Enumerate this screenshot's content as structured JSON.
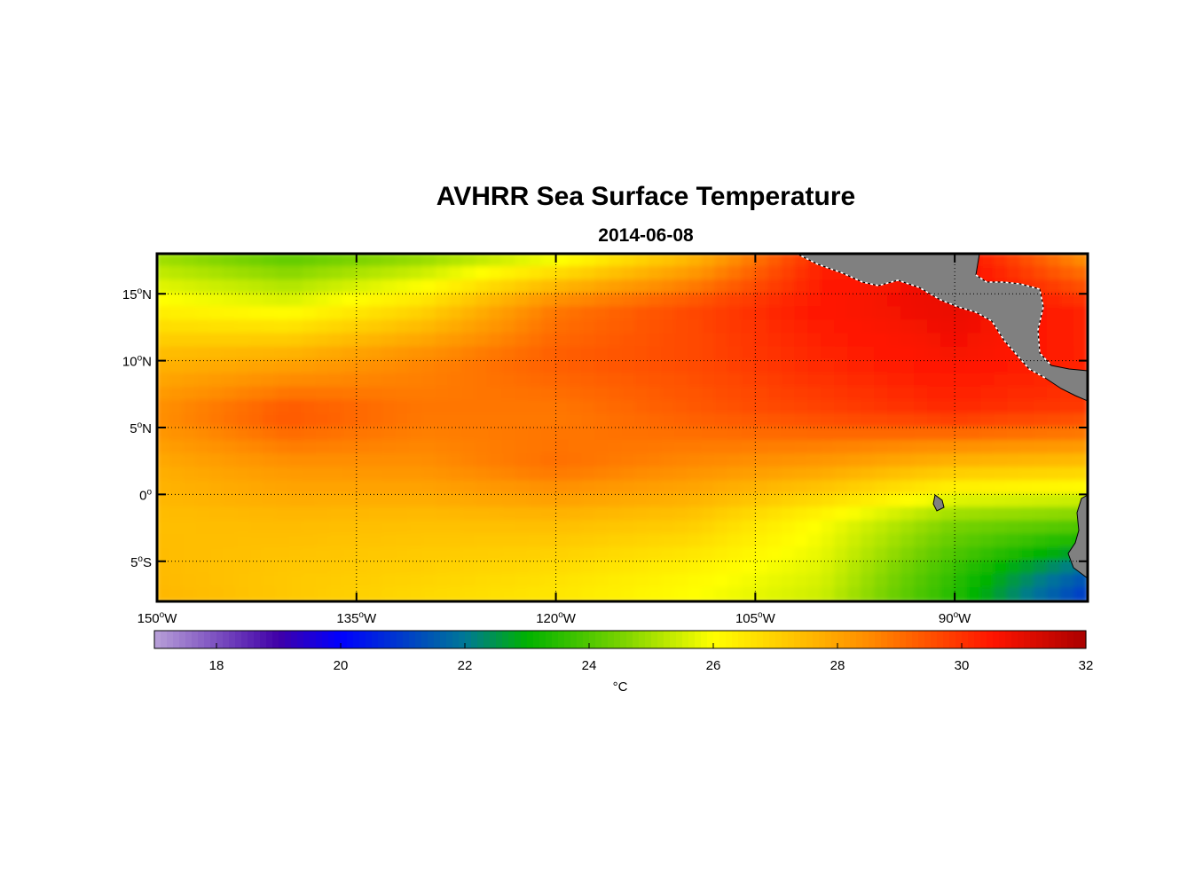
{
  "title": "AVHRR Sea Surface Temperature",
  "subtitle": "2014-06-08",
  "colorbar": {
    "unit": "°C",
    "min": 17,
    "max": 32,
    "ticks": [
      {
        "value": 18,
        "label": "18"
      },
      {
        "value": 20,
        "label": "20"
      },
      {
        "value": 22,
        "label": "22"
      },
      {
        "value": 24,
        "label": "24"
      },
      {
        "value": 26,
        "label": "26"
      },
      {
        "value": 28,
        "label": "28"
      },
      {
        "value": 30,
        "label": "30"
      },
      {
        "value": 32,
        "label": "32"
      }
    ]
  },
  "chart_data": {
    "type": "heatmap",
    "title": "AVHRR Sea Surface Temperature",
    "subtitle": "2014-06-08",
    "xlabel": "",
    "ylabel": "",
    "xlim": [
      -150,
      -80
    ],
    "ylim": [
      -8,
      18
    ],
    "x_ticks": [
      {
        "value": -150,
        "label": "150",
        "hemi": "W"
      },
      {
        "value": -135,
        "label": "135",
        "hemi": "W"
      },
      {
        "value": -120,
        "label": "120",
        "hemi": "W"
      },
      {
        "value": -105,
        "label": "105",
        "hemi": "W"
      },
      {
        "value": -90,
        "label": "90",
        "hemi": "W"
      }
    ],
    "y_ticks": [
      {
        "value": 15,
        "label": "15",
        "hemi": "N"
      },
      {
        "value": 10,
        "label": "10",
        "hemi": "N"
      },
      {
        "value": 5,
        "label": "5",
        "hemi": "N"
      },
      {
        "value": 0,
        "label": "0",
        "hemi": ""
      },
      {
        "value": -5,
        "label": "5",
        "hemi": "S"
      }
    ],
    "grid": "dotted",
    "colorbar_unit": "°C",
    "colorbar_range": [
      17,
      32
    ],
    "land_color": "#808080",
    "lon": [
      -150,
      -140,
      -130,
      -120,
      -110,
      -100,
      -90,
      -80
    ],
    "lat": [
      18,
      14,
      10,
      6,
      2,
      -2,
      -6,
      -8
    ],
    "values": [
      [
        24.8,
        24.0,
        24.6,
        25.5,
        27.3,
        30.2,
        30.8,
        28.2
      ],
      [
        26.2,
        25.8,
        26.8,
        28.8,
        29.6,
        30.5,
        30.9,
        30.2
      ],
      [
        27.6,
        27.9,
        28.6,
        29.3,
        29.6,
        30.2,
        30.6,
        30.3
      ],
      [
        28.5,
        29.5,
        28.9,
        28.8,
        29.3,
        29.7,
        30.1,
        29.8
      ],
      [
        27.8,
        28.3,
        28.4,
        29.0,
        28.5,
        28.1,
        27.4,
        27.2
      ],
      [
        27.4,
        27.5,
        27.4,
        27.5,
        27.2,
        26.0,
        24.6,
        24.3
      ],
      [
        27.5,
        27.2,
        27.0,
        26.7,
        26.2,
        25.6,
        23.6,
        21.5
      ],
      [
        27.6,
        27.2,
        26.8,
        26.5,
        26.0,
        25.4,
        23.4,
        20.8
      ]
    ]
  }
}
